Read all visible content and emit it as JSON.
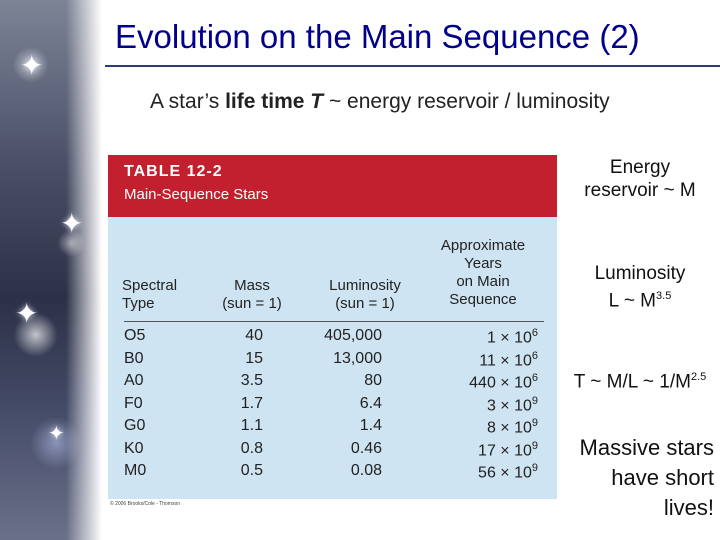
{
  "slide": {
    "title": "Evolution on the Main Sequence (2)",
    "subtitle_prefix": "A star’s ",
    "subtitle_bold": "life time",
    "subtitle_italic": "T",
    "subtitle_suffix": " ~ energy reservoir / luminosity"
  },
  "table": {
    "number": "TABLE 12-2",
    "caption": "Main-Sequence Stars",
    "headers": {
      "spectral": "Spectral\nType",
      "mass": "Mass\n(sun = 1)",
      "luminosity": "Luminosity\n(sun = 1)",
      "years": "Approximate\nYears\non Main\nSequence"
    },
    "rows": [
      {
        "type": "O5",
        "mass": "40",
        "lum": "405,000",
        "years_coef": "1 × 10",
        "years_exp": "6"
      },
      {
        "type": "B0",
        "mass": "15",
        "lum": "13,000",
        "years_coef": "11 × 10",
        "years_exp": "6"
      },
      {
        "type": "A0",
        "mass": "3.5",
        "lum": "80",
        "years_coef": "440 × 10",
        "years_exp": "6"
      },
      {
        "type": "F0",
        "mass": "1.7",
        "lum": "6.4",
        "years_coef": "3 × 10",
        "years_exp": "9"
      },
      {
        "type": "G0",
        "mass": "1.1",
        "lum": "1.4",
        "years_coef": "8 × 10",
        "years_exp": "9"
      },
      {
        "type": "K0",
        "mass": "0.8",
        "lum": "0.46",
        "years_coef": "17 × 10",
        "years_exp": "9"
      },
      {
        "type": "M0",
        "mass": "0.5",
        "lum": "0.08",
        "years_coef": "56 × 10",
        "years_exp": "9"
      }
    ],
    "copyright": "© 2006 Brooks/Cole - Thomson"
  },
  "notes": {
    "energy": "Energy\nreservoir ~ M",
    "luminosity_line1": "Luminosity",
    "luminosity_line2": "L ~ M",
    "luminosity_exp": "3.5",
    "lifetime": "T ~ M/L ~ 1/M",
    "lifetime_exp": "2.5",
    "massive": "Massive stars\nhave short\nlives!"
  }
}
